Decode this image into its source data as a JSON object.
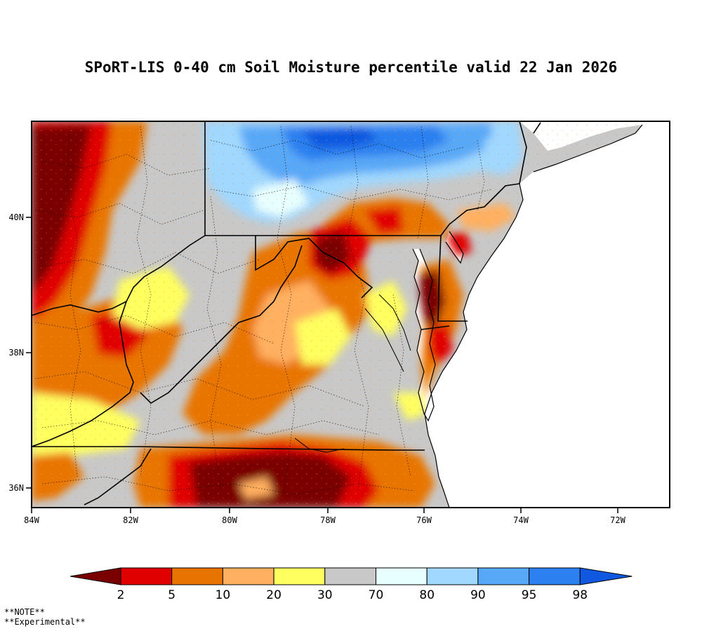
{
  "title": "SPoRT-LIS 0-40 cm Soil Moisture percentile valid 22 Jan 2026",
  "map": {
    "lon_ticks": [
      "84W",
      "82W",
      "80W",
      "78W",
      "76W",
      "74W",
      "72W"
    ],
    "lat_ticks": [
      "40N",
      "38N",
      "36N"
    ]
  },
  "colorbar": {
    "labels": [
      "2",
      "5",
      "10",
      "20",
      "30",
      "70",
      "80",
      "90",
      "95",
      "98"
    ],
    "colors": [
      "#7a0000",
      "#e00000",
      "#e87400",
      "#ffb060",
      "#ffff60",
      "#c8c8c8",
      "#e8ffff",
      "#a0d8ff",
      "#58a8f8",
      "#2c80f0",
      "#1058e0"
    ]
  },
  "notes": [
    "**NOTE**",
    "**Experimental**"
  ]
}
